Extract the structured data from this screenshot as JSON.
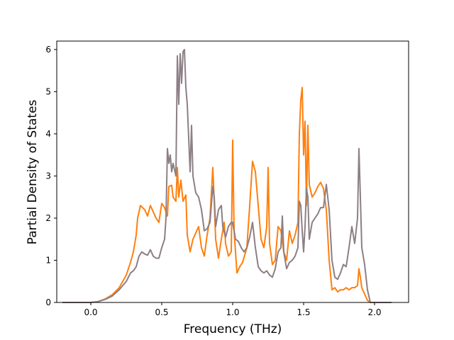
{
  "chart_data": {
    "type": "line",
    "title": "",
    "xlabel": "Frequency (THz)",
    "ylabel": "Partial Density of States",
    "xlim": [
      -0.24,
      2.24
    ],
    "ylim": [
      0,
      6.2
    ],
    "xticks": [
      0.0,
      0.5,
      1.0,
      1.5,
      2.0
    ],
    "xtick_labels": [
      "0.0",
      "0.5",
      "1.0",
      "1.5",
      "2.0"
    ],
    "yticks": [
      0,
      1,
      2,
      3,
      4,
      5,
      6
    ],
    "ytick_labels": [
      "0",
      "1",
      "2",
      "3",
      "4",
      "5",
      "6"
    ],
    "grid": false,
    "legend": "none",
    "series": [
      {
        "color": "#ff7f0e",
        "points": [
          [
            -0.2,
            0
          ],
          [
            0.0,
            0.0
          ],
          [
            0.05,
            0.02
          ],
          [
            0.1,
            0.08
          ],
          [
            0.15,
            0.18
          ],
          [
            0.2,
            0.35
          ],
          [
            0.25,
            0.65
          ],
          [
            0.28,
            0.95
          ],
          [
            0.3,
            1.2
          ],
          [
            0.32,
            1.6
          ],
          [
            0.33,
            2.0
          ],
          [
            0.35,
            2.3
          ],
          [
            0.38,
            2.2
          ],
          [
            0.4,
            2.05
          ],
          [
            0.42,
            2.3
          ],
          [
            0.44,
            2.15
          ],
          [
            0.46,
            2.0
          ],
          [
            0.48,
            1.9
          ],
          [
            0.5,
            2.35
          ],
          [
            0.52,
            2.25
          ],
          [
            0.54,
            2.05
          ],
          [
            0.55,
            2.75
          ],
          [
            0.57,
            2.78
          ],
          [
            0.58,
            2.5
          ],
          [
            0.6,
            2.4
          ],
          [
            0.61,
            3.2
          ],
          [
            0.62,
            2.5
          ],
          [
            0.635,
            2.9
          ],
          [
            0.65,
            2.4
          ],
          [
            0.67,
            2.55
          ],
          [
            0.68,
            1.6
          ],
          [
            0.7,
            1.2
          ],
          [
            0.72,
            1.5
          ],
          [
            0.74,
            1.65
          ],
          [
            0.76,
            1.8
          ],
          [
            0.78,
            1.3
          ],
          [
            0.8,
            1.1
          ],
          [
            0.82,
            1.6
          ],
          [
            0.84,
            2.0
          ],
          [
            0.86,
            3.2
          ],
          [
            0.87,
            2.4
          ],
          [
            0.88,
            1.5
          ],
          [
            0.9,
            1.05
          ],
          [
            0.92,
            1.5
          ],
          [
            0.94,
            1.9
          ],
          [
            0.95,
            1.4
          ],
          [
            0.97,
            1.1
          ],
          [
            0.99,
            1.2
          ],
          [
            1.0,
            3.85
          ],
          [
            1.01,
            1.7
          ],
          [
            1.03,
            0.7
          ],
          [
            1.05,
            0.85
          ],
          [
            1.07,
            0.95
          ],
          [
            1.1,
            1.3
          ],
          [
            1.12,
            2.3
          ],
          [
            1.14,
            3.35
          ],
          [
            1.16,
            3.1
          ],
          [
            1.18,
            2.3
          ],
          [
            1.2,
            1.5
          ],
          [
            1.22,
            1.3
          ],
          [
            1.24,
            1.8
          ],
          [
            1.25,
            3.2
          ],
          [
            1.26,
            1.4
          ],
          [
            1.28,
            0.9
          ],
          [
            1.3,
            1.0
          ],
          [
            1.32,
            1.8
          ],
          [
            1.34,
            1.7
          ],
          [
            1.36,
            1.2
          ],
          [
            1.38,
            1.0
          ],
          [
            1.4,
            1.7
          ],
          [
            1.42,
            1.4
          ],
          [
            1.44,
            1.6
          ],
          [
            1.46,
            1.9
          ],
          [
            1.47,
            4.0
          ],
          [
            1.48,
            4.8
          ],
          [
            1.49,
            5.1
          ],
          [
            1.5,
            3.5
          ],
          [
            1.51,
            4.3
          ],
          [
            1.52,
            2.3
          ],
          [
            1.53,
            4.2
          ],
          [
            1.54,
            2.8
          ],
          [
            1.56,
            2.5
          ],
          [
            1.58,
            2.6
          ],
          [
            1.6,
            2.75
          ],
          [
            1.62,
            2.85
          ],
          [
            1.64,
            2.7
          ],
          [
            1.66,
            2.2
          ],
          [
            1.68,
            1.0
          ],
          [
            1.7,
            0.3
          ],
          [
            1.72,
            0.35
          ],
          [
            1.74,
            0.25
          ],
          [
            1.76,
            0.3
          ],
          [
            1.78,
            0.3
          ],
          [
            1.8,
            0.35
          ],
          [
            1.82,
            0.3
          ],
          [
            1.84,
            0.35
          ],
          [
            1.86,
            0.35
          ],
          [
            1.88,
            0.4
          ],
          [
            1.89,
            0.8
          ],
          [
            1.9,
            0.6
          ],
          [
            1.91,
            0.35
          ],
          [
            1.93,
            0.2
          ],
          [
            1.95,
            0.05
          ],
          [
            1.97,
            0
          ],
          [
            2.12,
            0
          ]
        ]
      },
      {
        "color": "#8c7f86",
        "points": [
          [
            -0.2,
            0
          ],
          [
            0.0,
            0.0
          ],
          [
            0.05,
            0.02
          ],
          [
            0.1,
            0.07
          ],
          [
            0.15,
            0.15
          ],
          [
            0.2,
            0.3
          ],
          [
            0.25,
            0.5
          ],
          [
            0.28,
            0.7
          ],
          [
            0.3,
            0.75
          ],
          [
            0.32,
            0.85
          ],
          [
            0.34,
            1.1
          ],
          [
            0.36,
            1.2
          ],
          [
            0.38,
            1.15
          ],
          [
            0.4,
            1.12
          ],
          [
            0.42,
            1.25
          ],
          [
            0.44,
            1.1
          ],
          [
            0.46,
            1.05
          ],
          [
            0.48,
            1.05
          ],
          [
            0.5,
            1.3
          ],
          [
            0.52,
            1.5
          ],
          [
            0.53,
            2.0
          ],
          [
            0.54,
            3.65
          ],
          [
            0.55,
            3.3
          ],
          [
            0.56,
            3.5
          ],
          [
            0.57,
            3.1
          ],
          [
            0.58,
            3.3
          ],
          [
            0.6,
            3.0
          ],
          [
            0.61,
            5.85
          ],
          [
            0.62,
            4.7
          ],
          [
            0.63,
            5.9
          ],
          [
            0.64,
            5.2
          ],
          [
            0.65,
            5.95
          ],
          [
            0.66,
            6.0
          ],
          [
            0.67,
            5.1
          ],
          [
            0.68,
            4.7
          ],
          [
            0.69,
            3.9
          ],
          [
            0.7,
            3.1
          ],
          [
            0.71,
            4.2
          ],
          [
            0.72,
            3.0
          ],
          [
            0.74,
            2.6
          ],
          [
            0.76,
            2.5
          ],
          [
            0.78,
            2.2
          ],
          [
            0.8,
            1.7
          ],
          [
            0.82,
            1.75
          ],
          [
            0.84,
            1.9
          ],
          [
            0.86,
            2.75
          ],
          [
            0.87,
            2.5
          ],
          [
            0.88,
            1.8
          ],
          [
            0.9,
            2.2
          ],
          [
            0.92,
            2.3
          ],
          [
            0.93,
            1.8
          ],
          [
            0.95,
            1.55
          ],
          [
            0.97,
            1.8
          ],
          [
            0.99,
            1.9
          ],
          [
            1.0,
            1.9
          ],
          [
            1.02,
            1.5
          ],
          [
            1.04,
            1.45
          ],
          [
            1.06,
            1.3
          ],
          [
            1.08,
            1.2
          ],
          [
            1.1,
            1.3
          ],
          [
            1.12,
            1.55
          ],
          [
            1.14,
            1.9
          ],
          [
            1.16,
            1.3
          ],
          [
            1.18,
            0.85
          ],
          [
            1.2,
            0.75
          ],
          [
            1.22,
            0.7
          ],
          [
            1.24,
            0.75
          ],
          [
            1.26,
            0.65
          ],
          [
            1.28,
            0.6
          ],
          [
            1.3,
            0.8
          ],
          [
            1.32,
            1.2
          ],
          [
            1.34,
            1.3
          ],
          [
            1.35,
            2.05
          ],
          [
            1.36,
            1.2
          ],
          [
            1.38,
            0.8
          ],
          [
            1.4,
            0.95
          ],
          [
            1.42,
            1.0
          ],
          [
            1.44,
            1.1
          ],
          [
            1.46,
            1.3
          ],
          [
            1.47,
            2.4
          ],
          [
            1.48,
            2.3
          ],
          [
            1.49,
            1.7
          ],
          [
            1.5,
            1.2
          ],
          [
            1.51,
            1.8
          ],
          [
            1.52,
            2.7
          ],
          [
            1.53,
            2.5
          ],
          [
            1.54,
            1.5
          ],
          [
            1.56,
            1.9
          ],
          [
            1.58,
            2.0
          ],
          [
            1.6,
            2.1
          ],
          [
            1.62,
            2.25
          ],
          [
            1.64,
            2.25
          ],
          [
            1.66,
            2.8
          ],
          [
            1.68,
            2.2
          ],
          [
            1.7,
            1.0
          ],
          [
            1.72,
            0.6
          ],
          [
            1.74,
            0.55
          ],
          [
            1.76,
            0.7
          ],
          [
            1.78,
            0.9
          ],
          [
            1.8,
            0.85
          ],
          [
            1.82,
            1.3
          ],
          [
            1.84,
            1.8
          ],
          [
            1.86,
            1.4
          ],
          [
            1.88,
            2.0
          ],
          [
            1.89,
            3.65
          ],
          [
            1.9,
            2.5
          ],
          [
            1.91,
            1.3
          ],
          [
            1.93,
            0.9
          ],
          [
            1.95,
            0.3
          ],
          [
            1.97,
            0
          ],
          [
            2.12,
            0
          ]
        ]
      }
    ]
  }
}
